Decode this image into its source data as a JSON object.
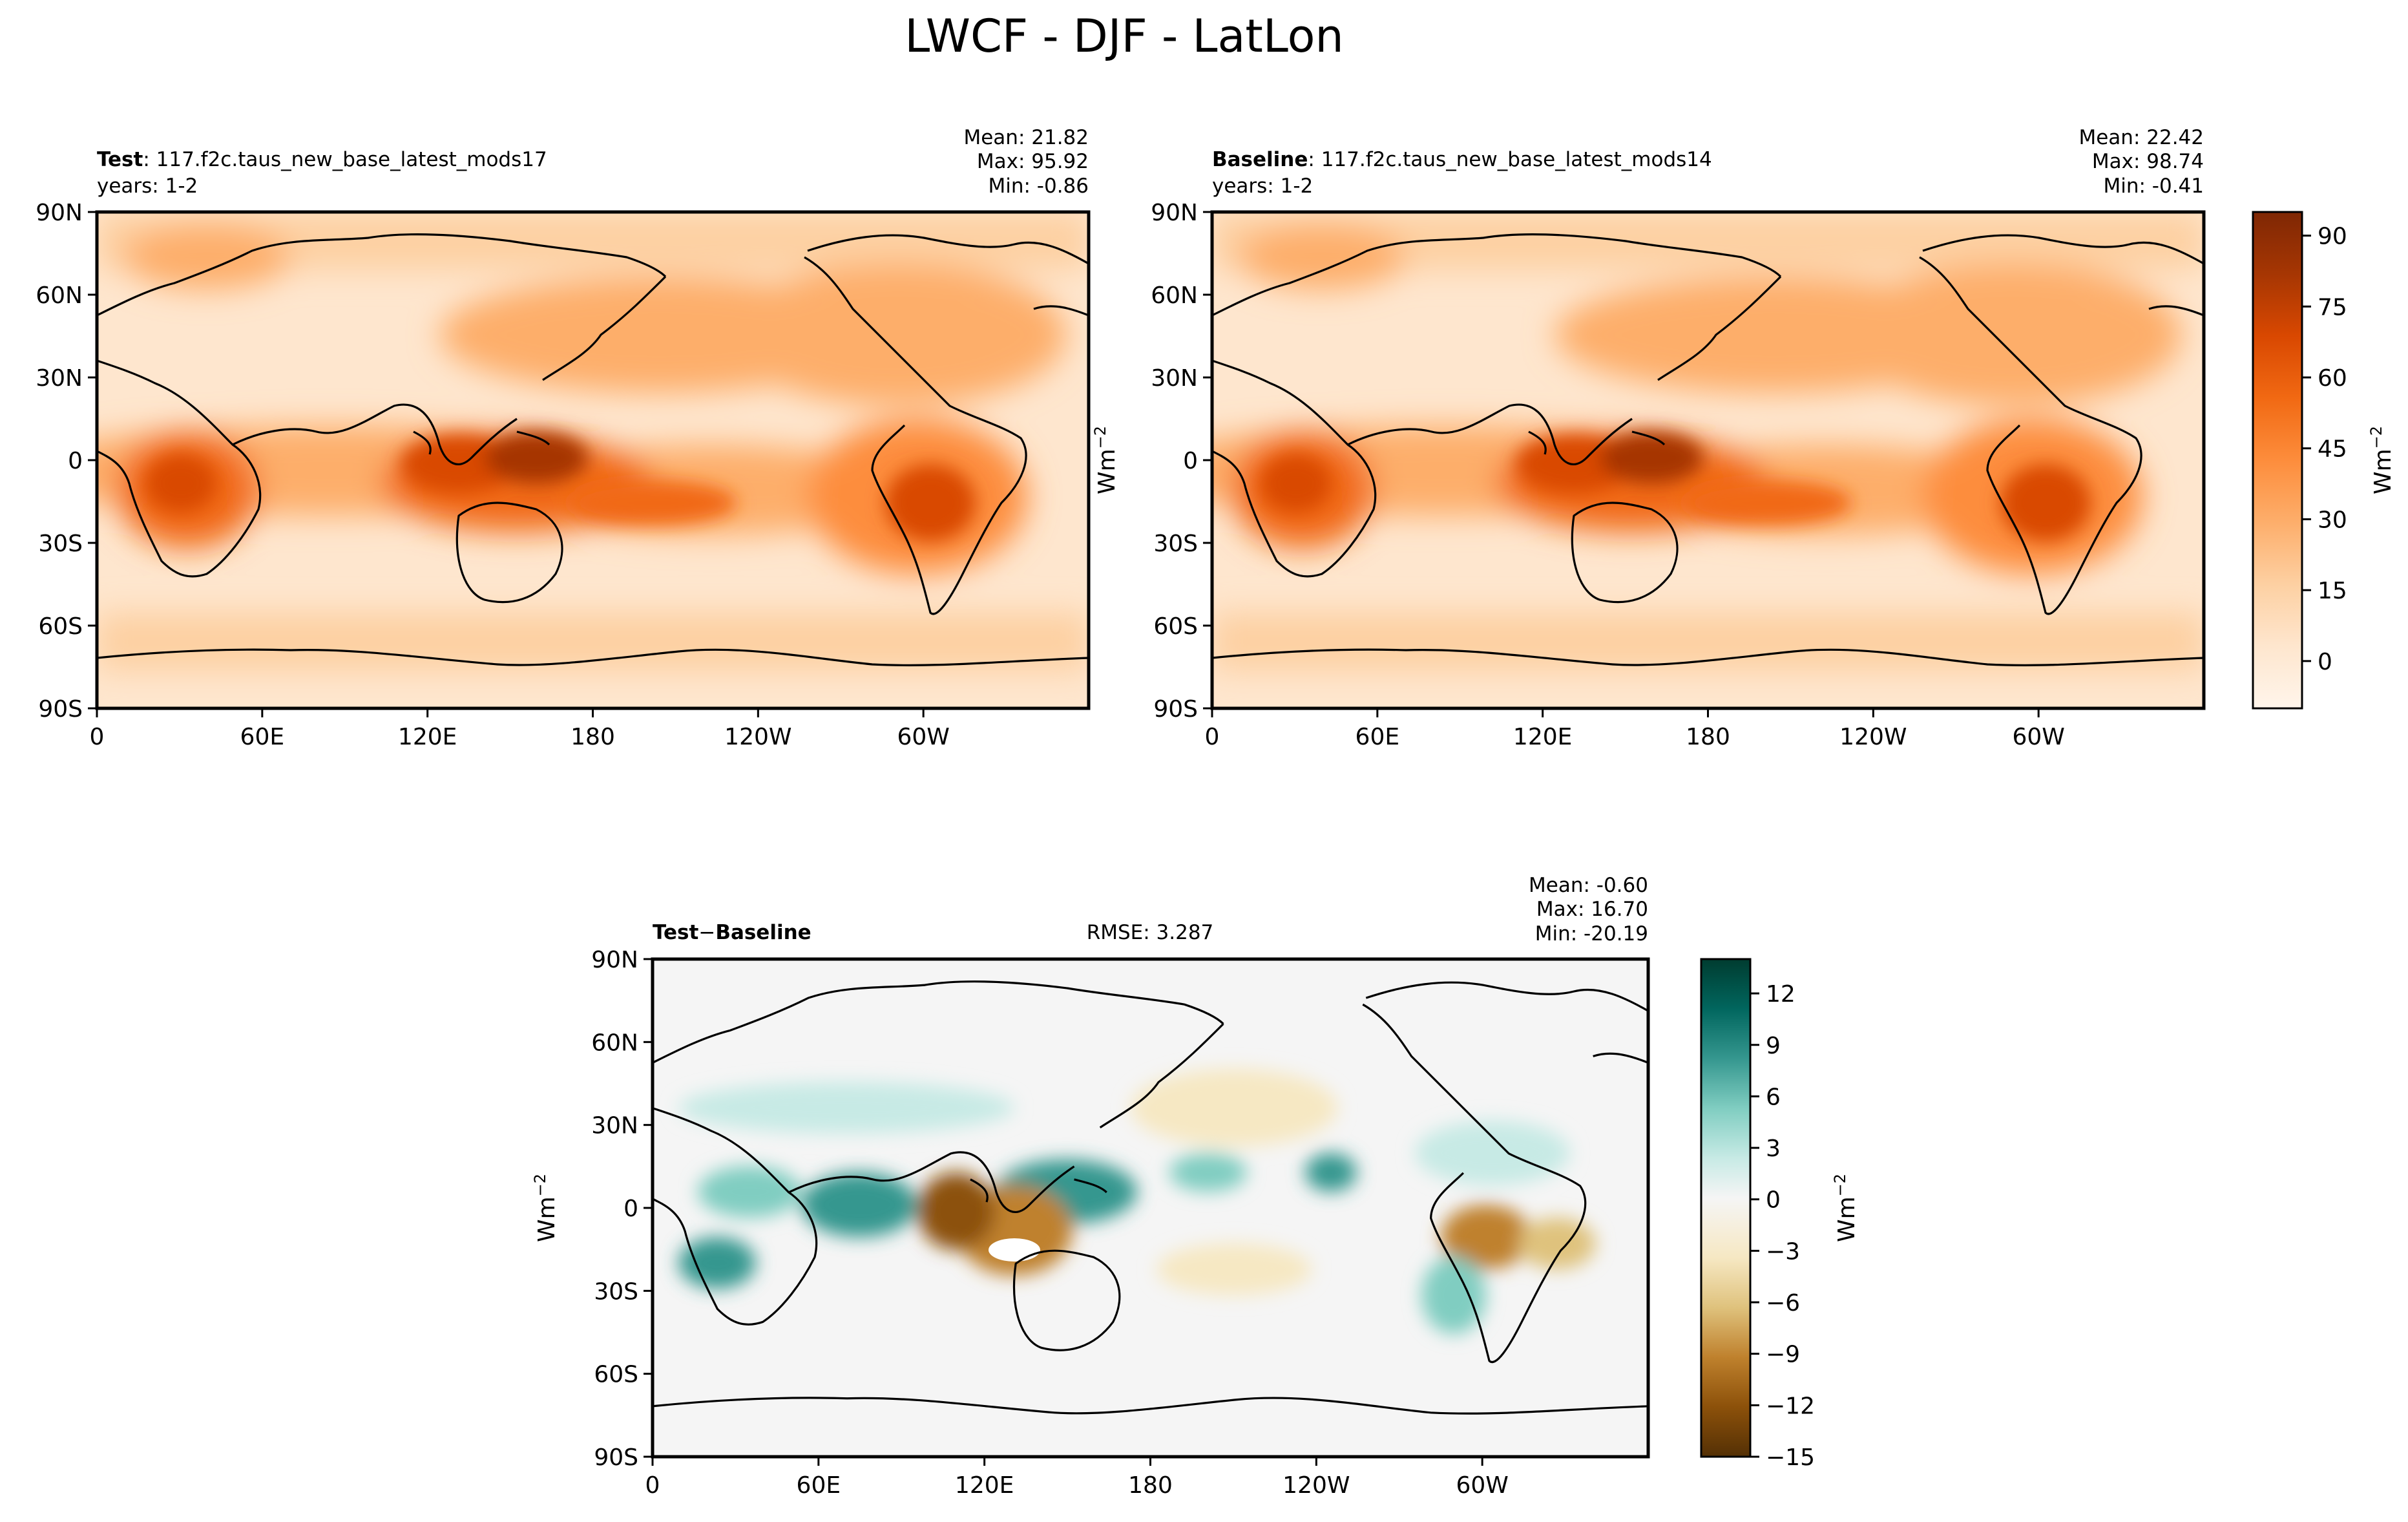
{
  "title": "LWCF - DJF - LatLon",
  "colors": {
    "seq": [
      "#fff5eb",
      "#fee6ce",
      "#fdd0a2",
      "#fdae6b",
      "#fd8d3c",
      "#f16913",
      "#d94801",
      "#a63603",
      "#7f2704"
    ],
    "div": [
      "#543005",
      "#8c510a",
      "#bf812d",
      "#dfc27d",
      "#f6e8c3",
      "#f5f5f5",
      "#c7eae5",
      "#80cdc1",
      "#35978f",
      "#01665e",
      "#003c30"
    ]
  },
  "lat_ticks": [
    "90N",
    "60N",
    "30N",
    "0",
    "30S",
    "60S",
    "90S"
  ],
  "lon_ticks": [
    "0",
    "60E",
    "120E",
    "180",
    "120W",
    "60W"
  ],
  "panels": {
    "test": {
      "name": "Test",
      "case": "117.f2c.taus_new_base_latest_mods17",
      "years": "years: 1-2",
      "mean": "Mean: 21.82",
      "max": "Max: 95.92",
      "min": "Min: -0.86"
    },
    "baseline": {
      "name": "Baseline",
      "case": "117.f2c.taus_new_base_latest_mods14",
      "years": "years: 1-2",
      "mean": "Mean: 22.42",
      "max": "Max: 98.74",
      "min": "Min: -0.41"
    },
    "diff": {
      "name_a": "Test",
      "minus": "−",
      "name_b": "Baseline",
      "rmse": "RMSE: 3.287",
      "mean": "Mean: -0.60",
      "max": "Max: 16.70",
      "min": "Min: -20.19"
    }
  },
  "colorbars": {
    "top": {
      "label": "Wm",
      "exp": "−2",
      "min": -10,
      "max": 95,
      "ticks": [
        "90",
        "75",
        "60",
        "45",
        "30",
        "15",
        "0"
      ],
      "tick_values": [
        90,
        75,
        60,
        45,
        30,
        15,
        0
      ]
    },
    "bottom": {
      "label": "Wm",
      "exp": "−2",
      "min": -15,
      "max": 14,
      "ticks": [
        "12",
        "9",
        "6",
        "3",
        "0",
        "−3",
        "−6",
        "−9",
        "−12",
        "−15"
      ],
      "tick_values": [
        12,
        9,
        6,
        3,
        0,
        -3,
        -6,
        -9,
        -12,
        -15
      ]
    }
  },
  "ylabel": "Wm",
  "ylabel_exp": "−2",
  "chart_data": [
    {
      "type": "heatmap",
      "title": "Test : 117.f2c.taus_new_base_latest_mods17",
      "variable": "LWCF",
      "season": "DJF",
      "units": "Wm-2",
      "xlabel": "",
      "ylabel": "",
      "xlim": [
        0,
        360
      ],
      "ylim": [
        -90,
        90
      ],
      "stats": {
        "mean": 21.82,
        "max": 95.92,
        "min": -0.86
      },
      "clim": [
        -10,
        95
      ]
    },
    {
      "type": "heatmap",
      "title": "Baseline : 117.f2c.taus_new_base_latest_mods14",
      "variable": "LWCF",
      "season": "DJF",
      "units": "Wm-2",
      "xlabel": "",
      "ylabel": "Wm-2",
      "xlim": [
        0,
        360
      ],
      "ylim": [
        -90,
        90
      ],
      "stats": {
        "mean": 22.42,
        "max": 98.74,
        "min": -0.41
      },
      "clim": [
        -10,
        95
      ]
    },
    {
      "type": "heatmap",
      "title": "Test - Baseline",
      "variable": "LWCF",
      "season": "DJF",
      "units": "Wm-2",
      "xlabel": "",
      "ylabel": "Wm-2",
      "xlim": [
        0,
        360
      ],
      "ylim": [
        -90,
        90
      ],
      "stats": {
        "mean": -0.6,
        "max": 16.7,
        "min": -20.19,
        "rmse": 3.287
      },
      "clim": [
        -15,
        14
      ]
    }
  ]
}
